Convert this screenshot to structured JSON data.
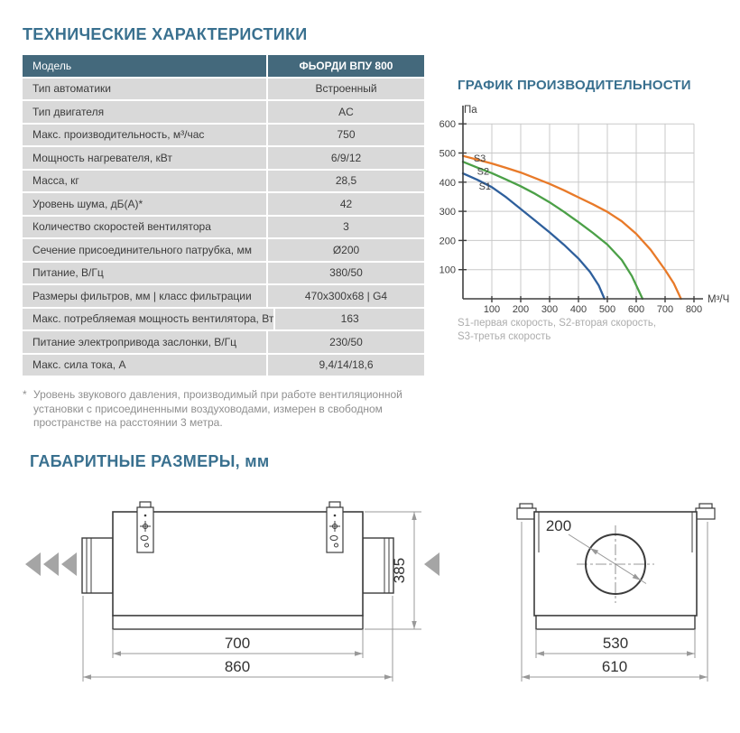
{
  "page": {
    "title": "ТЕХНИЧЕСКИЕ ХАРАКТЕРИСТИКИ",
    "dimensions_title": "ГАБАРИТНЫЕ РАЗМЕРЫ, мм"
  },
  "colors": {
    "title_accent": "#39708F",
    "table_header_bg": "#44697C",
    "table_row_bg": "#D9D9D9",
    "text": "#3B3B3B",
    "grid": "#C9C9C9",
    "axis": "#3F3F3F",
    "dim_line": "#999999",
    "drawing_line": "#3C3C3C",
    "airflow_arrow": "#A5A5A5",
    "series_s1": "#2E5F9C",
    "series_s2": "#4BA047",
    "series_s3": "#E87A29"
  },
  "spec_table": {
    "header": {
      "label": "Модель",
      "value": "ФЬОРДИ ВПУ 800"
    },
    "rows": [
      {
        "label": "Тип автоматики",
        "value": "Встроенный"
      },
      {
        "label": "Тип двигателя",
        "value": "AC"
      },
      {
        "label": "Макс. производительность, м³/час",
        "value": "750"
      },
      {
        "label": "Мощность нагревателя, кВт",
        "value": "6/9/12"
      },
      {
        "label": "Масса, кг",
        "value": "28,5"
      },
      {
        "label": "Уровень шума, дБ(А)*",
        "value": "42"
      },
      {
        "label": "Количество скоростей вентилятора",
        "value": "3"
      },
      {
        "label": "Сечение присоединительного патрубка, мм",
        "value": "Ø200"
      },
      {
        "label": "Питание, В/Гц",
        "value": "380/50"
      },
      {
        "label": "Размеры фильтров, мм  |  класс фильтрации",
        "value": "470x300x68  |  G4"
      },
      {
        "label": "Макс. потребляемая мощность вентилятора, Вт",
        "value": "163"
      },
      {
        "label": "Питание электропривода заслонки, В/Гц",
        "value": "230/50"
      },
      {
        "label": "Макс. сила тока, А",
        "value": "9,4/14/18,6"
      }
    ]
  },
  "chart_data": {
    "type": "line",
    "title": "ГРАФИК ПРОИЗВОДИТЕЛЬНОСТИ",
    "ylabel": "Па",
    "xlabel": "М³/Ч",
    "xlim": [
      0,
      800
    ],
    "ylim": [
      0,
      600
    ],
    "xticks": [
      100,
      200,
      300,
      400,
      500,
      600,
      700,
      800
    ],
    "yticks": [
      100,
      200,
      300,
      400,
      500,
      600
    ],
    "grid": true,
    "legend_position": "below",
    "note_lines": [
      "S1-первая скорость, S2-вторая скорость,",
      "S3-третья скорость"
    ],
    "series": [
      {
        "name": "S1",
        "description": "первая скорость",
        "color": "#2E5F9C",
        "label_at": [
          76,
          375
        ],
        "points": [
          [
            0,
            430
          ],
          [
            50,
            408
          ],
          [
            100,
            383
          ],
          [
            150,
            348
          ],
          [
            200,
            308
          ],
          [
            250,
            268
          ],
          [
            300,
            228
          ],
          [
            350,
            185
          ],
          [
            400,
            138
          ],
          [
            440,
            92
          ],
          [
            470,
            46
          ],
          [
            490,
            0
          ]
        ]
      },
      {
        "name": "S2",
        "description": "вторая скорость",
        "color": "#4BA047",
        "label_at": [
          70,
          425
        ],
        "points": [
          [
            0,
            470
          ],
          [
            50,
            450
          ],
          [
            100,
            431
          ],
          [
            150,
            409
          ],
          [
            200,
            386
          ],
          [
            250,
            360
          ],
          [
            300,
            331
          ],
          [
            350,
            298
          ],
          [
            400,
            263
          ],
          [
            450,
            226
          ],
          [
            500,
            186
          ],
          [
            550,
            133
          ],
          [
            585,
            78
          ],
          [
            610,
            25
          ],
          [
            622,
            0
          ]
        ]
      },
      {
        "name": "S3",
        "description": "третья скорость",
        "color": "#E87A29",
        "label_at": [
          58,
          470
        ],
        "points": [
          [
            0,
            490
          ],
          [
            50,
            477
          ],
          [
            100,
            464
          ],
          [
            150,
            449
          ],
          [
            200,
            433
          ],
          [
            250,
            414
          ],
          [
            300,
            394
          ],
          [
            350,
            372
          ],
          [
            400,
            348
          ],
          [
            450,
            324
          ],
          [
            500,
            298
          ],
          [
            550,
            266
          ],
          [
            600,
            223
          ],
          [
            650,
            168
          ],
          [
            700,
            99
          ],
          [
            730,
            53
          ],
          [
            755,
            0
          ]
        ]
      }
    ]
  },
  "footnote": {
    "marker": "*",
    "lines": [
      "Уровень звукового давления, производимый при работе вентиляционной",
      "установки с присоединенными воздуховодами, измерен в свободном",
      "пространстве на расстоянии 3 метра."
    ]
  },
  "drawings": {
    "side_view": {
      "height_label": "385",
      "body_width_label": "700",
      "total_width_label": "860"
    },
    "end_view": {
      "diameter_label": "200",
      "body_width_label": "530",
      "total_width_label": "610"
    }
  }
}
